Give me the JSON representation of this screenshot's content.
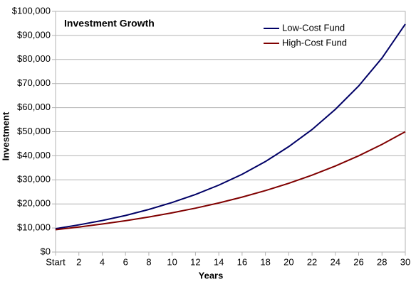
{
  "chart_data": {
    "type": "line",
    "title": "Investment Growth",
    "x_label": "Years",
    "y_label": "Investment",
    "x": [
      0,
      2,
      4,
      6,
      8,
      10,
      12,
      14,
      16,
      18,
      20,
      22,
      24,
      26,
      28,
      30
    ],
    "series": [
      {
        "name": "Low-Cost Fund",
        "color": "#000066",
        "values": [
          9700,
          11300,
          13100,
          15200,
          17700,
          20600,
          23900,
          27800,
          32300,
          37600,
          43800,
          50900,
          59300,
          69000,
          80600,
          94700
        ]
      },
      {
        "name": "High-Cost Fund",
        "color": "#800000",
        "values": [
          9300,
          10400,
          11640,
          13020,
          14570,
          16300,
          18230,
          20400,
          22820,
          25530,
          28560,
          31950,
          35740,
          39990,
          44730,
          50000
        ]
      }
    ],
    "xlim": [
      0,
      30
    ],
    "xticks": [
      {
        "value": 0,
        "label": "Start"
      },
      2,
      4,
      6,
      8,
      10,
      12,
      14,
      16,
      18,
      20,
      22,
      24,
      26,
      28,
      30
    ],
    "ylim": [
      0,
      100000
    ],
    "yticks": [
      {
        "value": 0,
        "label": "$0"
      },
      {
        "value": 10000,
        "label": "$10,000"
      },
      {
        "value": 20000,
        "label": "$20,000"
      },
      {
        "value": 30000,
        "label": "$30,000"
      },
      {
        "value": 40000,
        "label": "$40,000"
      },
      {
        "value": 50000,
        "label": "$50,000"
      },
      {
        "value": 60000,
        "label": "$60,000"
      },
      {
        "value": 70000,
        "label": "$70,000"
      },
      {
        "value": 80000,
        "label": "$80,000"
      },
      {
        "value": 90000,
        "label": "$90,000"
      },
      {
        "value": 100000,
        "label": "$100,000"
      }
    ],
    "grid": true,
    "legend": "top-right"
  }
}
